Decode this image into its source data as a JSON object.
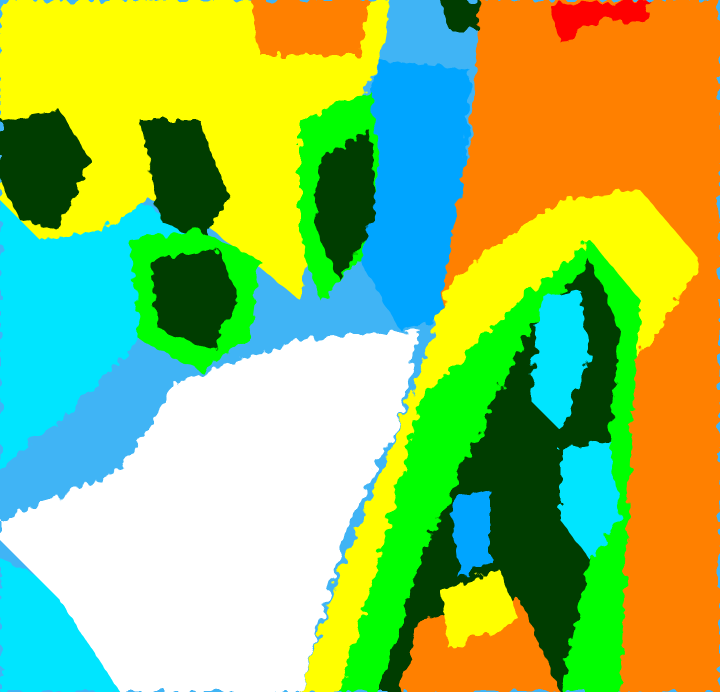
{
  "image": {
    "kind": "false-color satellite thermal image",
    "palette": {
      "red": "#ff0000",
      "orange": "#ff8000",
      "yellow": "#ffff00",
      "green": "#00ff00",
      "mid_green": "#00c000",
      "dark_green": "#003c00",
      "cyan": "#00e5ff",
      "blue": "#00a5ff",
      "light_blue": "#40b4f5",
      "white": "#ffffff"
    }
  }
}
